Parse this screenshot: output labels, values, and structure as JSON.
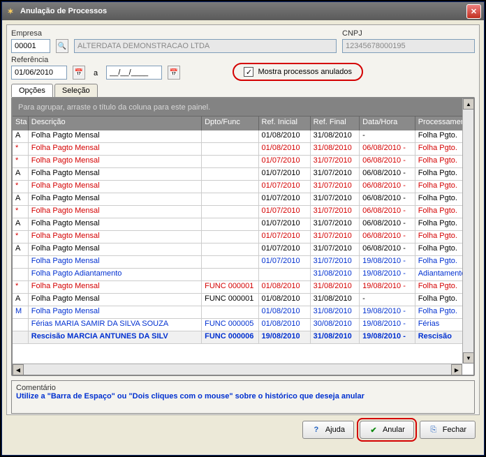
{
  "window": {
    "title": "Anulação de Processos"
  },
  "form": {
    "empresa_label": "Empresa",
    "empresa_code": "00001",
    "empresa_name": "ALTERDATA DEMONSTRACAO LTDA",
    "cnpj_label": "CNPJ",
    "cnpj_value": "12345678000195",
    "ref_label": "Referência",
    "ref_from": "01/06/2010",
    "ref_sep": "a",
    "ref_to": "__/__/____",
    "chk_label": "Mostra processos anulados",
    "chk_checked": "✓"
  },
  "tabs": {
    "options": "Opções",
    "selection": "Seleção"
  },
  "grid": {
    "group_hint": "Para agrupar, arraste o título da coluna para este painel.",
    "headers": [
      "Sta",
      "Descrição",
      "Dpto/Func",
      "Ref. Inicial",
      "Ref. Final",
      "Data/Hora",
      "Processamento"
    ],
    "rows": [
      {
        "s": "A",
        "d": "Folha Pagto Mensal",
        "f": "",
        "ri": "01/08/2010",
        "rf": "31/08/2010",
        "dh": "-",
        "p": "Folha Pgto.",
        "cls": ""
      },
      {
        "s": "*",
        "d": "Folha Pagto Mensal",
        "f": "",
        "ri": "01/08/2010",
        "rf": "31/08/2010",
        "dh": "06/08/2010  -",
        "p": "Folha Pgto.",
        "cls": "red"
      },
      {
        "s": "*",
        "d": "Folha Pagto Mensal",
        "f": "",
        "ri": "01/07/2010",
        "rf": "31/07/2010",
        "dh": "06/08/2010  -",
        "p": "Folha Pgto.",
        "cls": "red"
      },
      {
        "s": "A",
        "d": "Folha Pagto Mensal",
        "f": "",
        "ri": "01/07/2010",
        "rf": "31/07/2010",
        "dh": "06/08/2010  -",
        "p": "Folha Pgto.",
        "cls": ""
      },
      {
        "s": "*",
        "d": "Folha Pagto Mensal",
        "f": "",
        "ri": "01/07/2010",
        "rf": "31/07/2010",
        "dh": "06/08/2010  -",
        "p": "Folha Pgto.",
        "cls": "red"
      },
      {
        "s": "A",
        "d": "Folha Pagto Mensal",
        "f": "",
        "ri": "01/07/2010",
        "rf": "31/07/2010",
        "dh": "06/08/2010  -",
        "p": "Folha Pgto.",
        "cls": ""
      },
      {
        "s": "*",
        "d": "Folha Pagto Mensal",
        "f": "",
        "ri": "01/07/2010",
        "rf": "31/07/2010",
        "dh": "06/08/2010  -",
        "p": "Folha Pgto.",
        "cls": "red"
      },
      {
        "s": "A",
        "d": "Folha Pagto Mensal",
        "f": "",
        "ri": "01/07/2010",
        "rf": "31/07/2010",
        "dh": "06/08/2010  -",
        "p": "Folha Pgto.",
        "cls": ""
      },
      {
        "s": "*",
        "d": "Folha Pagto Mensal",
        "f": "",
        "ri": "01/07/2010",
        "rf": "31/07/2010",
        "dh": "06/08/2010  -",
        "p": "Folha Pgto.",
        "cls": "red"
      },
      {
        "s": "A",
        "d": "Folha Pagto Mensal",
        "f": "",
        "ri": "01/07/2010",
        "rf": "31/07/2010",
        "dh": "06/08/2010  -",
        "p": "Folha Pgto.",
        "cls": ""
      },
      {
        "s": "",
        "d": "Folha Pagto Mensal",
        "f": "",
        "ri": "01/07/2010",
        "rf": "31/07/2010",
        "dh": "19/08/2010  -",
        "p": "Folha Pgto.",
        "cls": "blue"
      },
      {
        "s": "",
        "d": "Folha Pagto Adiantamento",
        "f": "",
        "ri": "",
        "rf": "31/08/2010",
        "dh": "19/08/2010  -",
        "p": "Adiantamento",
        "cls": "blue"
      },
      {
        "s": "*",
        "d": "Folha Pagto Mensal",
        "f": "FUNC 000001",
        "ri": "01/08/2010",
        "rf": "31/08/2010",
        "dh": "19/08/2010  -",
        "p": "Folha Pgto.",
        "cls": "red"
      },
      {
        "s": "A",
        "d": "Folha Pagto Mensal",
        "f": "FUNC 000001",
        "ri": "01/08/2010",
        "rf": "31/08/2010",
        "dh": "-",
        "p": "Folha Pgto.",
        "cls": ""
      },
      {
        "s": "M",
        "d": "Folha Pagto Mensal",
        "f": "",
        "ri": "01/08/2010",
        "rf": "31/08/2010",
        "dh": "19/08/2010  -",
        "p": "Folha Pgto.",
        "cls": "blue"
      },
      {
        "s": "",
        "d": "Férias MARIA SAMIR DA SILVA SOUZA",
        "f": "FUNC 000005",
        "ri": "01/08/2010",
        "rf": "30/08/2010",
        "dh": "19/08/2010  -",
        "p": "Férias",
        "cls": "blue"
      },
      {
        "s": "",
        "d": "Rescisão MARCIA ANTUNES DA SILV",
        "f": "FUNC 000006",
        "ri": "19/08/2010",
        "rf": "31/08/2010",
        "dh": "19/08/2010  -",
        "p": "Rescisão",
        "cls": "blue bold"
      }
    ]
  },
  "comment": {
    "label": "Comentário",
    "text": "Utilize a \"Barra de Espaço\" ou \"Dois cliques com o mouse\" sobre o histórico que deseja anular"
  },
  "buttons": {
    "help": "Ajuda",
    "anular": "Anular",
    "close": "Fechar"
  },
  "colors": {
    "highlight": "#d40000",
    "link": "#0030d0"
  }
}
